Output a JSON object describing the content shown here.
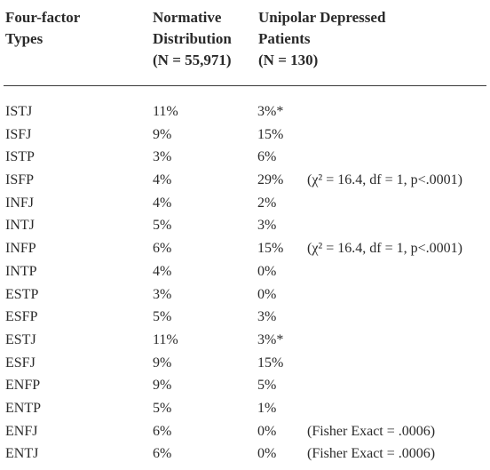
{
  "header": {
    "type_lines": [
      "Four-factor",
      "Types"
    ],
    "normative_lines": [
      "Normative",
      "Distribution",
      "(N = 55,971)"
    ],
    "unipolar_lines": [
      "Unipolar Depressed",
      "Patients",
      "(N = 130)"
    ]
  },
  "rows": [
    {
      "type": "ISTJ",
      "normative": "11%",
      "unipolar": "3%*",
      "note": ""
    },
    {
      "type": "ISFJ",
      "normative": "9%",
      "unipolar": "15%",
      "note": ""
    },
    {
      "type": "ISTP",
      "normative": "3%",
      "unipolar": "6%",
      "note": ""
    },
    {
      "type": "ISFP",
      "normative": "4%",
      "unipolar": "29%",
      "note": "(χ² = 16.4, df = 1, p<.0001)"
    },
    {
      "type": "INFJ",
      "normative": "4%",
      "unipolar": "2%",
      "note": ""
    },
    {
      "type": "INTJ",
      "normative": "5%",
      "unipolar": "3%",
      "note": ""
    },
    {
      "type": "INFP",
      "normative": "6%",
      "unipolar": "15%",
      "note": "(χ² = 16.4, df = 1, p<.0001)"
    },
    {
      "type": "INTP",
      "normative": "4%",
      "unipolar": "0%",
      "note": ""
    },
    {
      "type": "ESTP",
      "normative": "3%",
      "unipolar": "0%",
      "note": ""
    },
    {
      "type": "ESFP",
      "normative": "5%",
      "unipolar": "3%",
      "note": ""
    },
    {
      "type": "ESTJ",
      "normative": "11%",
      "unipolar": "3%*",
      "note": ""
    },
    {
      "type": "ESFJ",
      "normative": "9%",
      "unipolar": "15%",
      "note": ""
    },
    {
      "type": "ENFP",
      "normative": "9%",
      "unipolar": "5%",
      "note": ""
    },
    {
      "type": "ENTP",
      "normative": "5%",
      "unipolar": "1%",
      "note": ""
    },
    {
      "type": "ENFJ",
      "normative": "6%",
      "unipolar": "0%",
      "note": "(Fisher Exact = .0006)"
    },
    {
      "type": "ENTJ",
      "normative": "6%",
      "unipolar": "0%",
      "note": "(Fisher Exact = .0006)"
    }
  ]
}
